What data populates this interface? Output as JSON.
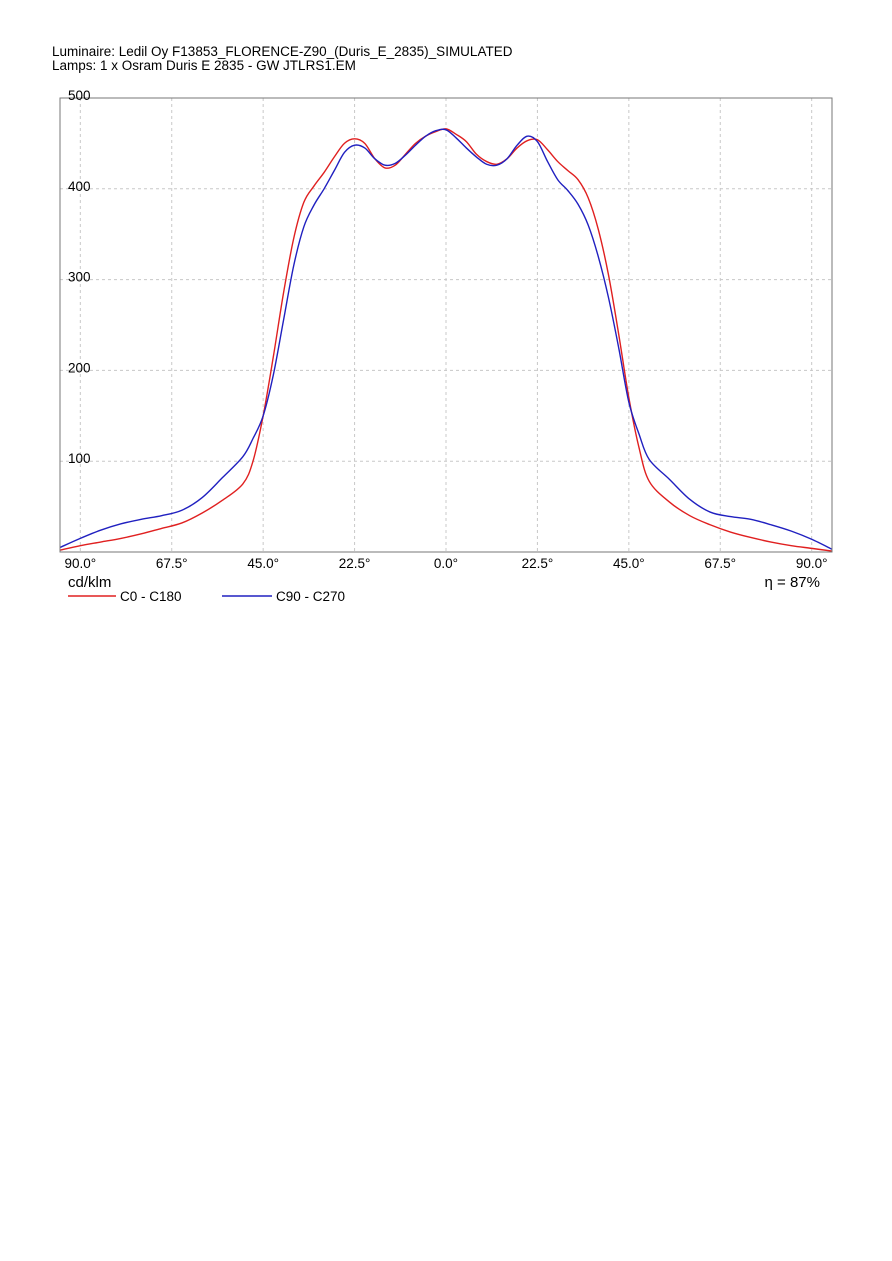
{
  "header": {
    "line1": "Luminaire: Ledil Oy F13853_FLORENCE-Z90_(Duris_E_2835)_SIMULATED",
    "line2": "Lamps: 1 x Osram Duris E 2835 - GW JTLRS1.EM"
  },
  "chart_data": {
    "type": "line",
    "title": "",
    "xlabel": "",
    "ylabel": "cd/klm",
    "efficiency_label": "η = 87%",
    "x_range": [
      -95,
      95
    ],
    "y_range": [
      0,
      500
    ],
    "x_ticks": [
      -90,
      -67.5,
      -45,
      -22.5,
      0,
      22.5,
      45,
      67.5,
      90
    ],
    "x_tick_labels": [
      "90.0°",
      "67.5°",
      "45.0°",
      "22.5°",
      "0.0°",
      "22.5°",
      "45.0°",
      "67.5°",
      "90.0°"
    ],
    "y_ticks": [
      100,
      200,
      300,
      400,
      500
    ],
    "y_tick_labels": [
      "100",
      "200",
      "300",
      "400",
      "500"
    ],
    "grid": true,
    "legend_position": "bottom-left",
    "colors": {
      "c0": "#e02020",
      "c90": "#2020c0",
      "grid": "#c8c8c8",
      "frame": "#777777"
    },
    "series": [
      {
        "name": "C0 - C180",
        "color": "#e02020",
        "points": [
          [
            -95,
            2
          ],
          [
            -90,
            7
          ],
          [
            -85,
            11
          ],
          [
            -80,
            15
          ],
          [
            -75,
            20
          ],
          [
            -70,
            26
          ],
          [
            -65,
            32
          ],
          [
            -60,
            43
          ],
          [
            -55,
            57
          ],
          [
            -50,
            75
          ],
          [
            -47.5,
            100
          ],
          [
            -45,
            150
          ],
          [
            -42.5,
            215
          ],
          [
            -40,
            285
          ],
          [
            -37.5,
            345
          ],
          [
            -35,
            385
          ],
          [
            -32.5,
            403
          ],
          [
            -30,
            418
          ],
          [
            -27.5,
            435
          ],
          [
            -25,
            450
          ],
          [
            -22.5,
            455
          ],
          [
            -20,
            450
          ],
          [
            -17.5,
            433
          ],
          [
            -15,
            423
          ],
          [
            -12.5,
            426
          ],
          [
            -10,
            438
          ],
          [
            -7.5,
            450
          ],
          [
            -5,
            458
          ],
          [
            -2.5,
            463
          ],
          [
            0,
            466
          ],
          [
            2.5,
            460
          ],
          [
            5,
            452
          ],
          [
            7.5,
            438
          ],
          [
            10,
            430
          ],
          [
            12.5,
            427
          ],
          [
            15,
            433
          ],
          [
            17.5,
            445
          ],
          [
            20,
            453
          ],
          [
            22.5,
            454
          ],
          [
            25,
            443
          ],
          [
            27.5,
            430
          ],
          [
            30,
            420
          ],
          [
            32.5,
            410
          ],
          [
            35,
            390
          ],
          [
            37.5,
            355
          ],
          [
            40,
            305
          ],
          [
            42.5,
            240
          ],
          [
            45,
            170
          ],
          [
            47.5,
            115
          ],
          [
            50,
            78
          ],
          [
            55,
            55
          ],
          [
            60,
            40
          ],
          [
            65,
            30
          ],
          [
            70,
            22
          ],
          [
            75,
            16
          ],
          [
            80,
            11
          ],
          [
            85,
            7
          ],
          [
            90,
            4
          ],
          [
            95,
            1
          ]
        ]
      },
      {
        "name": "C90 - C270",
        "color": "#2020c0",
        "points": [
          [
            -95,
            5
          ],
          [
            -90,
            15
          ],
          [
            -85,
            24
          ],
          [
            -80,
            31
          ],
          [
            -75,
            36
          ],
          [
            -70,
            40
          ],
          [
            -65,
            46
          ],
          [
            -60,
            60
          ],
          [
            -55,
            82
          ],
          [
            -50,
            105
          ],
          [
            -47.5,
            125
          ],
          [
            -45,
            150
          ],
          [
            -42.5,
            195
          ],
          [
            -40,
            255
          ],
          [
            -37.5,
            315
          ],
          [
            -35,
            358
          ],
          [
            -32.5,
            382
          ],
          [
            -30,
            400
          ],
          [
            -27.5,
            420
          ],
          [
            -25,
            440
          ],
          [
            -22.5,
            448
          ],
          [
            -20,
            445
          ],
          [
            -17.5,
            433
          ],
          [
            -15,
            426
          ],
          [
            -12.5,
            428
          ],
          [
            -10,
            437
          ],
          [
            -7.5,
            448
          ],
          [
            -5,
            458
          ],
          [
            -2.5,
            464
          ],
          [
            0,
            465
          ],
          [
            2.5,
            456
          ],
          [
            5,
            445
          ],
          [
            7.5,
            435
          ],
          [
            10,
            427
          ],
          [
            12.5,
            426
          ],
          [
            15,
            433
          ],
          [
            17.5,
            448
          ],
          [
            20,
            458
          ],
          [
            22.5,
            452
          ],
          [
            25,
            430
          ],
          [
            27.5,
            410
          ],
          [
            30,
            398
          ],
          [
            32.5,
            383
          ],
          [
            35,
            360
          ],
          [
            37.5,
            325
          ],
          [
            40,
            280
          ],
          [
            42.5,
            225
          ],
          [
            45,
            165
          ],
          [
            47.5,
            130
          ],
          [
            50,
            102
          ],
          [
            55,
            80
          ],
          [
            60,
            58
          ],
          [
            65,
            44
          ],
          [
            70,
            39
          ],
          [
            75,
            36
          ],
          [
            80,
            30
          ],
          [
            85,
            23
          ],
          [
            90,
            14
          ],
          [
            95,
            3
          ]
        ]
      }
    ]
  }
}
